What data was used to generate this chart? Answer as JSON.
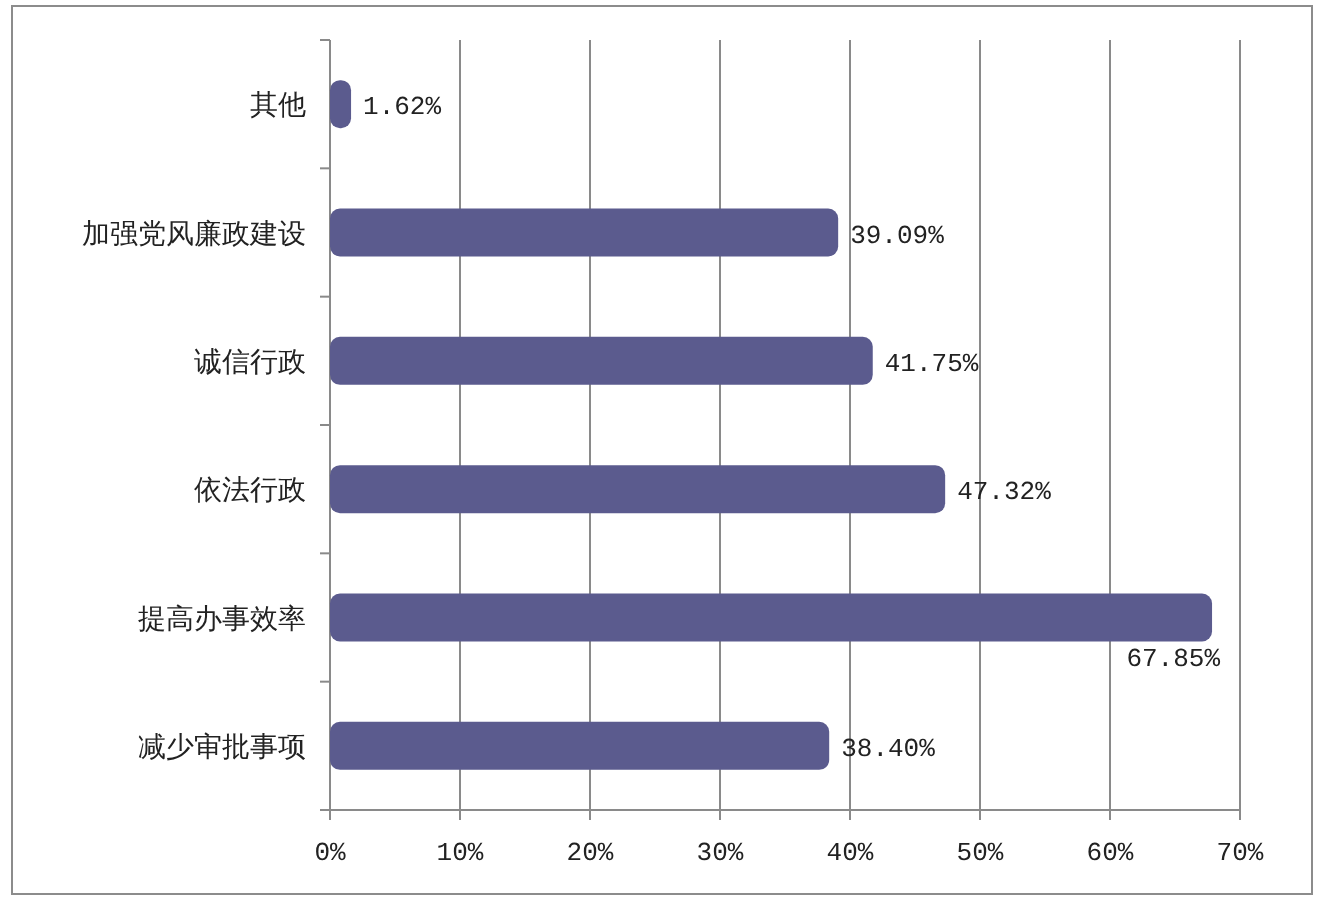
{
  "chart_data": {
    "type": "bar",
    "orientation": "horizontal",
    "categories": [
      "其他",
      "加强党风廉政建设",
      "诚信行政",
      "依法行政",
      "提高办事效率",
      "减少审批事项"
    ],
    "values": [
      1.62,
      39.09,
      41.75,
      47.32,
      67.85,
      38.4
    ],
    "color": "#5b5b8e",
    "value_labels": [
      "1.62%",
      "39.09%",
      "41.75%",
      "47.32%",
      "67.85%",
      "38.40%"
    ],
    "xlim": [
      0,
      70
    ],
    "xticks": [
      {
        "value": 0,
        "label": "0%"
      },
      {
        "value": 10,
        "label": "10%"
      },
      {
        "value": 20,
        "label": "20%"
      },
      {
        "value": 30,
        "label": "30%"
      },
      {
        "value": 40,
        "label": "40%"
      },
      {
        "value": 50,
        "label": "50%"
      },
      {
        "value": 60,
        "label": "60%"
      },
      {
        "value": 70,
        "label": "70%"
      }
    ],
    "grid": "x"
  }
}
